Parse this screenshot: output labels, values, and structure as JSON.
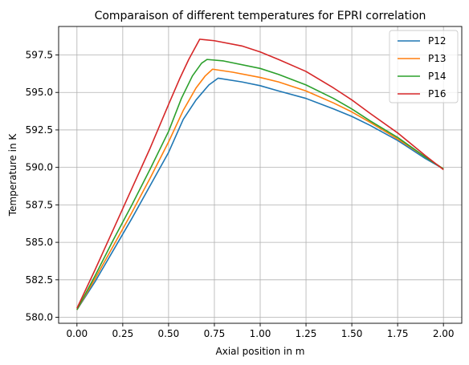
{
  "chart_data": {
    "type": "line",
    "title": "Comparaison of different temperatures for EPRI correlation",
    "xlabel": "Axial position in m",
    "ylabel": "Temperature in K",
    "xlim": [
      -0.1,
      2.1
    ],
    "ylim": [
      579.6,
      599.4
    ],
    "xticks": [
      0.0,
      0.25,
      0.5,
      0.75,
      1.0,
      1.25,
      1.5,
      1.75,
      2.0
    ],
    "xtick_labels": [
      "0.00",
      "0.25",
      "0.50",
      "0.75",
      "1.00",
      "1.25",
      "1.50",
      "1.75",
      "2.00"
    ],
    "yticks": [
      580.0,
      582.5,
      585.0,
      587.5,
      590.0,
      592.5,
      595.0,
      597.5
    ],
    "ytick_labels": [
      "580.0",
      "582.5",
      "585.0",
      "587.5",
      "590.0",
      "592.5",
      "595.0",
      "597.5"
    ],
    "grid": true,
    "legend_position": "top-right",
    "series": [
      {
        "name": "P12",
        "color": "#1f77b4",
        "points": [
          [
            0.0,
            580.5
          ],
          [
            0.1,
            582.4
          ],
          [
            0.2,
            584.5
          ],
          [
            0.3,
            586.6
          ],
          [
            0.4,
            588.8
          ],
          [
            0.5,
            591.0
          ],
          [
            0.58,
            593.2
          ],
          [
            0.65,
            594.5
          ],
          [
            0.72,
            595.5
          ],
          [
            0.77,
            595.95
          ],
          [
            0.9,
            595.7
          ],
          [
            1.0,
            595.45
          ],
          [
            1.1,
            595.1
          ],
          [
            1.25,
            594.6
          ],
          [
            1.4,
            593.9
          ],
          [
            1.5,
            593.4
          ],
          [
            1.6,
            592.8
          ],
          [
            1.75,
            591.8
          ],
          [
            1.9,
            590.6
          ],
          [
            2.0,
            589.9
          ]
        ]
      },
      {
        "name": "P13",
        "color": "#ff7f0e",
        "points": [
          [
            0.0,
            580.5
          ],
          [
            0.1,
            582.6
          ],
          [
            0.2,
            584.8
          ],
          [
            0.3,
            587.0
          ],
          [
            0.4,
            589.3
          ],
          [
            0.5,
            591.7
          ],
          [
            0.58,
            593.8
          ],
          [
            0.65,
            595.3
          ],
          [
            0.7,
            596.1
          ],
          [
            0.74,
            596.55
          ],
          [
            0.85,
            596.35
          ],
          [
            1.0,
            596.0
          ],
          [
            1.1,
            595.7
          ],
          [
            1.25,
            595.1
          ],
          [
            1.4,
            594.3
          ],
          [
            1.5,
            593.7
          ],
          [
            1.6,
            593.0
          ],
          [
            1.75,
            591.9
          ],
          [
            1.9,
            590.7
          ],
          [
            2.0,
            589.9
          ]
        ]
      },
      {
        "name": "P14",
        "color": "#2ca02c",
        "points": [
          [
            0.0,
            580.5
          ],
          [
            0.1,
            582.8
          ],
          [
            0.2,
            585.2
          ],
          [
            0.3,
            587.5
          ],
          [
            0.4,
            589.9
          ],
          [
            0.5,
            592.4
          ],
          [
            0.57,
            594.6
          ],
          [
            0.63,
            596.1
          ],
          [
            0.68,
            596.95
          ],
          [
            0.71,
            597.2
          ],
          [
            0.8,
            597.1
          ],
          [
            1.0,
            596.6
          ],
          [
            1.1,
            596.2
          ],
          [
            1.25,
            595.5
          ],
          [
            1.4,
            594.6
          ],
          [
            1.5,
            593.9
          ],
          [
            1.6,
            593.1
          ],
          [
            1.75,
            592.0
          ],
          [
            1.9,
            590.7
          ],
          [
            2.0,
            589.9
          ]
        ]
      },
      {
        "name": "P16",
        "color": "#d62728",
        "points": [
          [
            0.0,
            580.6
          ],
          [
            0.1,
            583.2
          ],
          [
            0.2,
            585.9
          ],
          [
            0.3,
            588.6
          ],
          [
            0.4,
            591.3
          ],
          [
            0.5,
            594.2
          ],
          [
            0.56,
            595.9
          ],
          [
            0.61,
            597.2
          ],
          [
            0.67,
            598.55
          ],
          [
            0.75,
            598.45
          ],
          [
            0.9,
            598.1
          ],
          [
            1.0,
            597.7
          ],
          [
            1.1,
            597.2
          ],
          [
            1.25,
            596.4
          ],
          [
            1.4,
            595.3
          ],
          [
            1.5,
            594.5
          ],
          [
            1.6,
            593.6
          ],
          [
            1.75,
            592.3
          ],
          [
            1.9,
            590.8
          ],
          [
            2.0,
            589.85
          ]
        ]
      }
    ]
  }
}
